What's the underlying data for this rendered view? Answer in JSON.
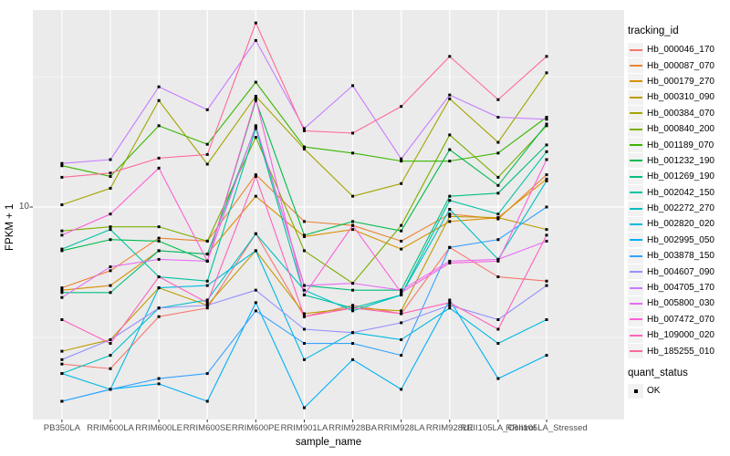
{
  "y_axis": {
    "title": "FPKM + 1",
    "tick_label": "10"
  },
  "x_axis": {
    "title": "sample_name"
  },
  "legend": {
    "title": "tracking_id",
    "quant_title": "quant_status",
    "quant_items": [
      {
        "label": "OK",
        "marker": "black-square"
      }
    ]
  },
  "chart_data": {
    "type": "line",
    "title": "",
    "xlabel": "sample_name",
    "ylabel": "FPKM + 1",
    "y_scale": "log10",
    "y_tick_values": [
      10
    ],
    "y_minor_gridlines": [
      3.162,
      31.62
    ],
    "ylim": [
      1.53,
      56.9
    ],
    "grid": true,
    "legend_position": "right",
    "point_marker": "black-square",
    "categories": [
      "PB350LA",
      "RRIM600LA",
      "RRIM600LE",
      "RRIM600SE",
      "RRIM600PE",
      "RRIM901LA",
      "RRIM928BA",
      "RRIM928LA",
      "RRIM928LE",
      "RRII105LA_Control",
      "RRII105LA_Stressed"
    ],
    "series": [
      {
        "name": "Hb_000046_170",
        "color": "#F8766D",
        "values": [
          2.5,
          2.4,
          3.8,
          4.1,
          7.9,
          3.8,
          4.2,
          3.9,
          7.0,
          5.4,
          5.2
        ]
      },
      {
        "name": "Hb_000087_070",
        "color": "#EA8331",
        "values": [
          4.9,
          5.7,
          7.6,
          7.4,
          13.3,
          8.8,
          8.5,
          7.4,
          9.4,
          9.0,
          13.3
        ]
      },
      {
        "name": "Hb_000179_270",
        "color": "#D89000",
        "values": [
          4.8,
          5.0,
          6.8,
          6.6,
          11.0,
          7.7,
          8.2,
          6.9,
          8.8,
          9.1,
          12.8
        ]
      },
      {
        "name": "Hb_000310_090",
        "color": "#C09B00",
        "values": [
          2.8,
          3.1,
          4.9,
          4.2,
          6.8,
          3.9,
          4.1,
          4.0,
          9.2,
          9.1,
          8.2
        ]
      },
      {
        "name": "Hb_000384_070",
        "color": "#A3A500",
        "values": [
          10.2,
          11.8,
          25.6,
          14.6,
          26.6,
          16.7,
          11.0,
          12.3,
          26.0,
          17.7,
          32.7
        ]
      },
      {
        "name": "Hb_000840_200",
        "color": "#7CAE00",
        "values": [
          8.1,
          8.4,
          8.4,
          7.4,
          18.5,
          6.8,
          5.1,
          8.5,
          18.9,
          13.0,
          20.5
        ]
      },
      {
        "name": "Hb_001189_070",
        "color": "#39B600",
        "values": [
          14.4,
          13.1,
          20.5,
          17.4,
          30.1,
          17.0,
          16.1,
          15.0,
          15.0,
          16.1,
          22.1
        ]
      },
      {
        "name": "Hb_001232_190",
        "color": "#00BB4E",
        "values": [
          6.8,
          7.5,
          7.4,
          6.2,
          25.6,
          7.8,
          8.8,
          8.1,
          16.6,
          12.1,
          20.8
        ]
      },
      {
        "name": "Hb_001269_190",
        "color": "#00BF7D",
        "values": [
          4.7,
          4.7,
          6.8,
          6.6,
          20.3,
          5.0,
          4.8,
          4.8,
          11.0,
          11.3,
          17.3
        ]
      },
      {
        "name": "Hb_002042_150",
        "color": "#00C1A3",
        "values": [
          6.9,
          8.2,
          5.4,
          5.2,
          20.0,
          4.6,
          4.1,
          4.6,
          10.6,
          9.4,
          16.3
        ]
      },
      {
        "name": "Hb_002272_270",
        "color": "#00BFC4",
        "values": [
          2.3,
          2.7,
          4.1,
          4.4,
          7.9,
          4.8,
          4.0,
          4.6,
          9.8,
          6.3,
          12.6
        ]
      },
      {
        "name": "Hb_002820_020",
        "color": "#00BAE0",
        "values": [
          2.3,
          2.0,
          4.9,
          5.0,
          6.8,
          2.6,
          3.3,
          3.1,
          4.1,
          3.0,
          3.7
        ]
      },
      {
        "name": "Hb_002995_050",
        "color": "#00B0F6",
        "values": [
          1.8,
          2.0,
          2.1,
          1.8,
          4.3,
          1.7,
          2.6,
          2.0,
          4.4,
          2.2,
          2.7
        ]
      },
      {
        "name": "Hb_003878_150",
        "color": "#35A2FF",
        "values": [
          1.8,
          2.0,
          2.2,
          2.3,
          4.0,
          3.0,
          3.0,
          2.7,
          7.0,
          7.5,
          10.0
        ]
      },
      {
        "name": "Hb_004607_090",
        "color": "#9590FF",
        "values": [
          2.6,
          3.1,
          4.1,
          4.2,
          4.8,
          3.4,
          3.3,
          3.6,
          4.2,
          3.7,
          5.0
        ]
      },
      {
        "name": "Hb_004705_170",
        "color": "#C77CFF",
        "values": [
          14.7,
          15.2,
          28.9,
          23.6,
          43.5,
          20.0,
          29.2,
          15.3,
          26.9,
          22.1,
          21.7
        ]
      },
      {
        "name": "Hb_005800_030",
        "color": "#E76BF3",
        "values": [
          4.5,
          5.9,
          6.3,
          6.2,
          20.5,
          5.0,
          5.1,
          4.8,
          6.2,
          6.3,
          7.4
        ]
      },
      {
        "name": "Hb_007472_070",
        "color": "#FA62DB",
        "values": [
          7.8,
          9.4,
          14.1,
          6.2,
          26.0,
          4.6,
          8.5,
          4.7,
          6.1,
          6.2,
          15.2
        ]
      },
      {
        "name": "Hb_109000_020",
        "color": "#FF62BC",
        "values": [
          3.7,
          3.0,
          5.4,
          4.3,
          13.1,
          3.8,
          4.1,
          3.9,
          4.3,
          3.4,
          7.8
        ]
      },
      {
        "name": "Hb_185255_010",
        "color": "#FF6A98",
        "values": [
          13.0,
          13.5,
          15.4,
          15.9,
          50.8,
          19.6,
          19.2,
          24.3,
          37.8,
          25.8,
          37.8
        ]
      }
    ],
    "panel_background": "#EBEBEB",
    "gridline_color": "#FFFFFF"
  }
}
